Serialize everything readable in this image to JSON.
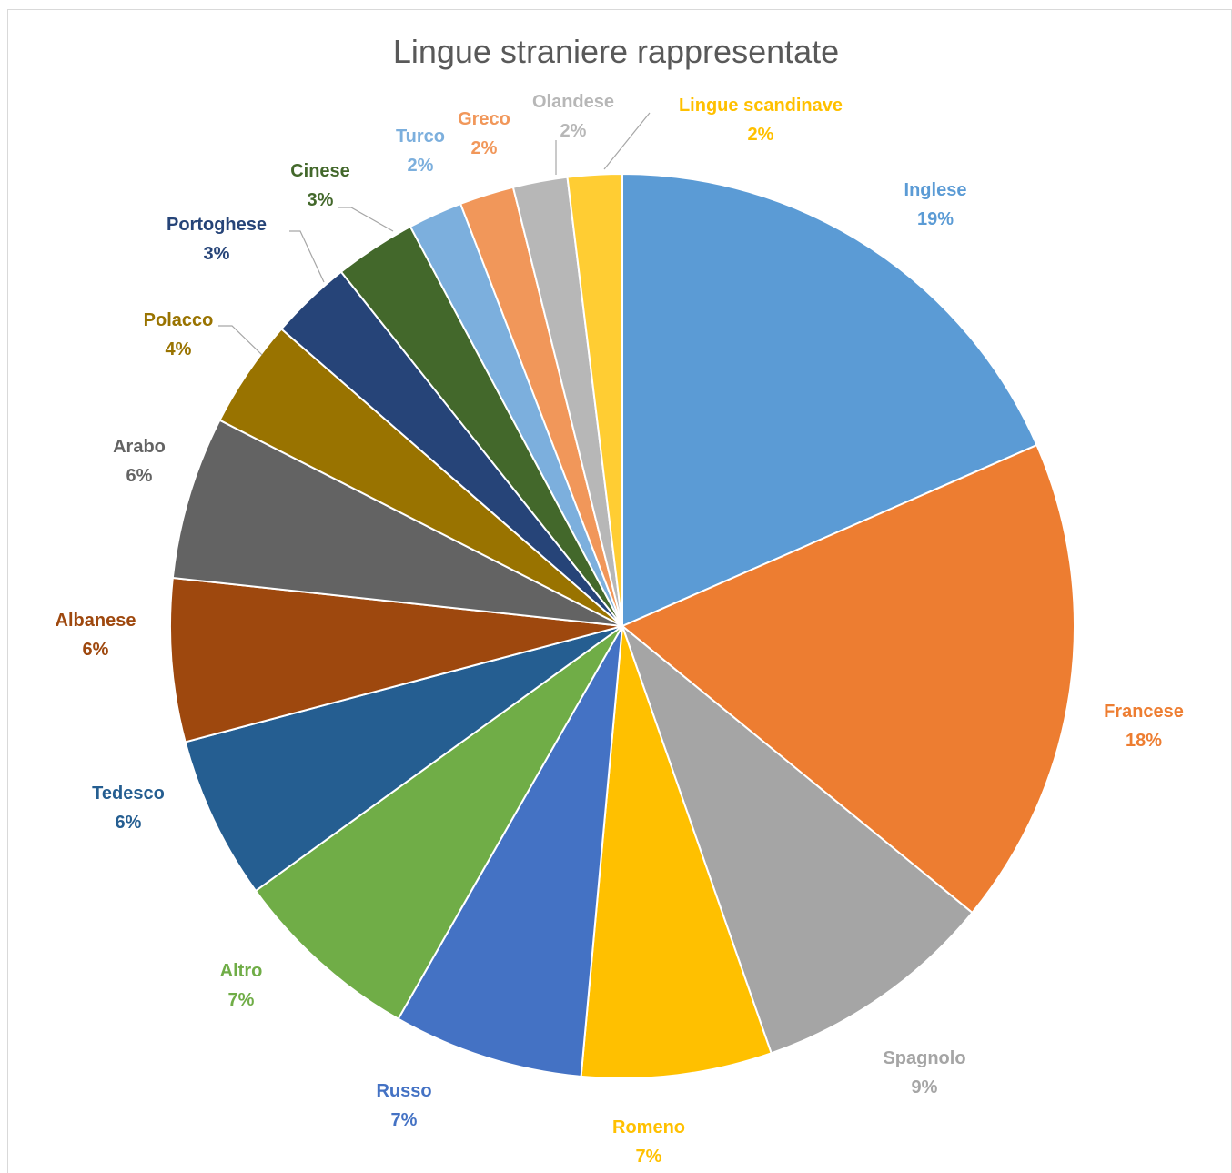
{
  "chart_data": {
    "type": "pie",
    "title": "Lingue straniere rappresentate",
    "slices": [
      {
        "label": "Inglese",
        "value": 19,
        "pct_label": "19%",
        "color": "#5B9BD5"
      },
      {
        "label": "Francese",
        "value": 18,
        "pct_label": "18%",
        "color": "#ED7D31"
      },
      {
        "label": "Spagnolo",
        "value": 9,
        "pct_label": "9%",
        "color": "#A5A5A5"
      },
      {
        "label": "Romeno",
        "value": 7,
        "pct_label": "7%",
        "color": "#FFC000"
      },
      {
        "label": "Russo",
        "value": 7,
        "pct_label": "7%",
        "color": "#4472C4"
      },
      {
        "label": "Altro",
        "value": 7,
        "pct_label": "7%",
        "color": "#70AD47"
      },
      {
        "label": "Tedesco",
        "value": 6,
        "pct_label": "6%",
        "color": "#255E91"
      },
      {
        "label": "Albanese",
        "value": 6,
        "pct_label": "6%",
        "color": "#9E480E"
      },
      {
        "label": "Arabo",
        "value": 6,
        "pct_label": "6%",
        "color": "#636363"
      },
      {
        "label": "Polacco",
        "value": 4,
        "pct_label": "4%",
        "color": "#997300"
      },
      {
        "label": "Portoghese",
        "value": 3,
        "pct_label": "3%",
        "color": "#264478"
      },
      {
        "label": "Cinese",
        "value": 3,
        "pct_label": "3%",
        "color": "#43682B"
      },
      {
        "label": "Turco",
        "value": 2,
        "pct_label": "2%",
        "color": "#7CAFDD"
      },
      {
        "label": "Greco",
        "value": 2,
        "pct_label": "2%",
        "color": "#F1975A"
      },
      {
        "label": "Olandese",
        "value": 2,
        "pct_label": "2%",
        "color": "#B7B7B7"
      },
      {
        "label": "Lingue scandinave",
        "value": 2,
        "pct_label": "2%",
        "color": "#FFCD33"
      }
    ],
    "legend": "none",
    "label_text_colors": {
      "Inglese": "#5B9BD5",
      "Francese": "#ED7D31",
      "Spagnolo": "#A5A5A5",
      "Romeno": "#FFC000",
      "Russo": "#4472C4",
      "Altro": "#70AD47",
      "Tedesco": "#255E91",
      "Albanese": "#9E480E",
      "Arabo": "#636363",
      "Polacco": "#997300",
      "Portoghese": "#264478",
      "Cinese": "#43682B",
      "Turco": "#7CAFDD",
      "Greco": "#F1975A",
      "Olandese": "#B7B7B7",
      "Lingue scandinave": "#FFC000"
    }
  }
}
